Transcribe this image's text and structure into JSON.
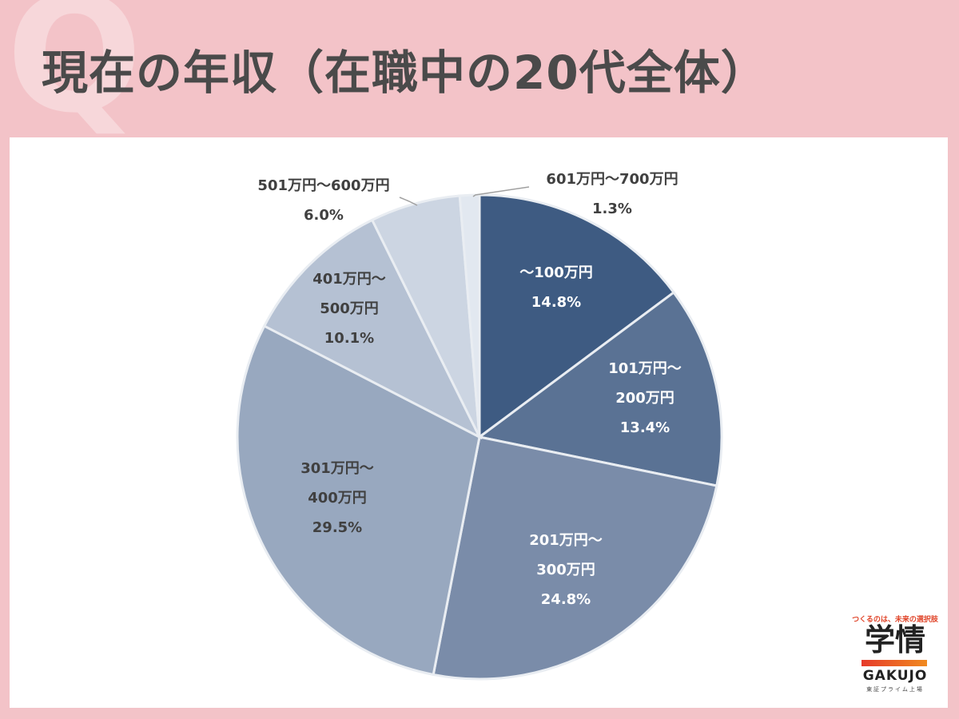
{
  "header": {
    "q_mark": "Q",
    "title": "現在の年収（在職中の20代全体）"
  },
  "chart_data": {
    "type": "pie",
    "title": "現在の年収（在職中の20代全体）",
    "start_angle_deg": 0,
    "direction": "clockwise",
    "slices": [
      {
        "label_lines": [
          "～100万円"
        ],
        "value": 14.8,
        "value_label": "14.8%",
        "color": "#3e5b82",
        "text_color": "#ffffff"
      },
      {
        "label_lines": [
          "101万円～",
          "200万円"
        ],
        "value": 13.4,
        "value_label": "13.4%",
        "color": "#5a7294",
        "text_color": "#ffffff"
      },
      {
        "label_lines": [
          "201万円～",
          "300万円"
        ],
        "value": 24.8,
        "value_label": "24.8%",
        "color": "#7a8ca9",
        "text_color": "#ffffff"
      },
      {
        "label_lines": [
          "301万円～",
          "400万円"
        ],
        "value": 29.5,
        "value_label": "29.5%",
        "color": "#98a8bf",
        "text_color": "#404040"
      },
      {
        "label_lines": [
          "401万円～",
          "500万円"
        ],
        "value": 10.1,
        "value_label": "10.1%",
        "color": "#b5c1d3",
        "text_color": "#404040"
      },
      {
        "label_lines": [
          "501万円～600万円"
        ],
        "value": 6.0,
        "value_label": "6.0%",
        "color": "#ccd5e2",
        "text_color": "#404040"
      },
      {
        "label_lines": [
          "601万円～700万円"
        ],
        "value": 1.3,
        "value_label": "1.3%",
        "color": "#e2e8f0",
        "text_color": "#404040"
      }
    ]
  },
  "logo": {
    "tagline": "つくるのは、未来の選択肢",
    "kanji": "学情",
    "latin": "GAKUJO",
    "market": "東証プライム上場"
  }
}
